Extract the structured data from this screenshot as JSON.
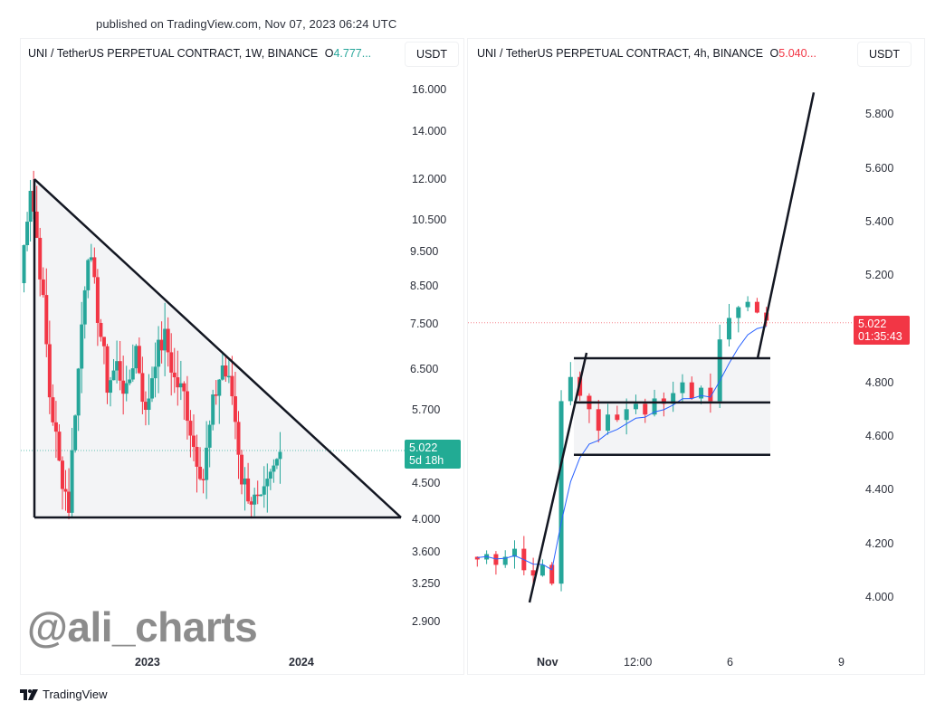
{
  "header": {
    "published": "published on TradingView.com, Nov 07, 2023 06:24 UTC"
  },
  "colors": {
    "up": "#26a69a",
    "down": "#f23645",
    "green_badge": "#22ab94",
    "red_badge": "#f23645",
    "ma_line": "#2962ff",
    "pattern_line": "#131722",
    "pattern_fill": "#f3f4f6"
  },
  "left_chart": {
    "title": "UNI / TetherUS PERPETUAL CONTRACT, 1W, BINANCE",
    "ohlc_prefix": "O",
    "ohlc_value": "4.777...",
    "currency": "USDT",
    "price_labels": [
      "16.000",
      "14.000",
      "12.000",
      "10.500",
      "9.500",
      "8.500",
      "7.500",
      "6.500",
      "5.700",
      "4.500",
      "4.000",
      "3.600",
      "3.250",
      "2.900"
    ],
    "price_badge": {
      "price": "5.022",
      "countdown": "5d 18h"
    },
    "time_labels": [
      "2023",
      "2024"
    ],
    "watermark": "@ali_charts"
  },
  "right_chart": {
    "title": "UNI / TetherUS PERPETUAL CONTRACT, 4h, BINANCE",
    "ohlc_prefix": "O",
    "ohlc_value": "5.040...",
    "currency": "USDT",
    "price_labels": [
      "5.800",
      "5.600",
      "5.400",
      "5.200",
      "4.800",
      "4.600",
      "4.400",
      "4.200",
      "4.000"
    ],
    "price_badge": {
      "price": "5.022",
      "countdown": "01:35:43"
    },
    "time_labels": [
      "Nov",
      "12:00",
      "6",
      "9"
    ]
  },
  "footer": {
    "brand": "TradingView"
  },
  "chart_data": [
    {
      "type": "candlestick",
      "title": "UNI / TetherUS PERPETUAL CONTRACT, 1W, BINANCE",
      "xlabel": "",
      "ylabel": "USDT",
      "y_scale": "log",
      "y_ticks": [
        16.0,
        14.0,
        12.0,
        10.5,
        9.5,
        8.5,
        7.5,
        6.5,
        5.7,
        5.022,
        4.5,
        4.0,
        3.6,
        3.25,
        2.9
      ],
      "x_ticks": [
        "2023",
        "2024"
      ],
      "last_price": 5.022,
      "annotations": [
        "Descending triangle: upper trendline from ~12.0 high sloping down, horizontal support ~4.05",
        "@ali_charts watermark"
      ],
      "support": 4.05,
      "resistance_start": 12.0,
      "approx_path": [
        8.6,
        11.8,
        9.0,
        6.0,
        4.8,
        4.2,
        6.5,
        9.6,
        7.8,
        6.2,
        6.6,
        6.0,
        7.0,
        5.6,
        6.8,
        7.2,
        6.3,
        6.0,
        5.1,
        4.6,
        5.8,
        6.6,
        6.0,
        4.6,
        4.3,
        4.2,
        4.6,
        5.0
      ]
    },
    {
      "type": "candlestick",
      "title": "UNI / TetherUS PERPETUAL CONTRACT, 4h, BINANCE",
      "xlabel": "",
      "ylabel": "USDT",
      "y_ticks": [
        5.8,
        5.6,
        5.4,
        5.2,
        5.022,
        4.8,
        4.6,
        4.4,
        4.2,
        4.0
      ],
      "x_ticks": [
        "Nov",
        "12:00",
        "6",
        "9"
      ],
      "last_price": 5.022,
      "annotations": [
        "Bull flag: flagpole from ~3.98 to ~4.90",
        "Consolidation box 4.53 - 4.89 with midline ~4.72",
        "Projected breakout line to ~5.88",
        "Blue moving average"
      ],
      "box": {
        "top": 4.89,
        "mid": 4.725,
        "bottom": 4.53
      },
      "approx_path": [
        4.15,
        4.14,
        4.16,
        4.12,
        4.15,
        4.18,
        4.1,
        4.08,
        4.12,
        4.05,
        4.73,
        4.82,
        4.75,
        4.7,
        4.62,
        4.68,
        4.66,
        4.7,
        4.72,
        4.68,
        4.74,
        4.72,
        4.76,
        4.8,
        4.74,
        4.78,
        4.73,
        4.96,
        5.04,
        5.08,
        5.1,
        5.06,
        5.03
      ]
    }
  ]
}
